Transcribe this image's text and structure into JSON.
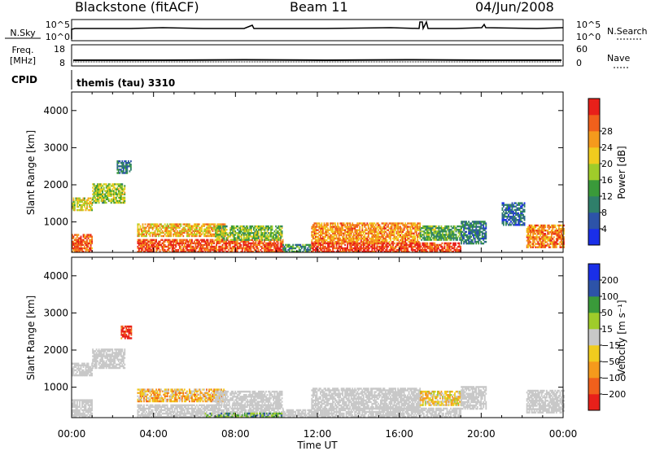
{
  "header": {
    "radar": "Blackstone (fitACF)",
    "beam": "Beam 11",
    "date": "04/Jun/2008"
  },
  "top_panels": {
    "nsky_label": "N.Sky",
    "nsky_ticks": [
      "10^5",
      "10^0"
    ],
    "nsearch_label": "N.Search",
    "nsearch_ticks": [
      "10^5",
      "10^0"
    ],
    "freq_label": "Freq.",
    "freq_unit": "[MHz]",
    "freq_ticks": [
      "18",
      "8"
    ],
    "nave_label": "Nave",
    "nave_ticks": [
      "60",
      "0"
    ],
    "cpid_label": "CPID",
    "cpid_value": "themis (tau) 3310"
  },
  "colors": {
    "power": [
      "#1a2fe8",
      "#2d53a8",
      "#2f7f6a",
      "#3a9a3a",
      "#9fcc2a",
      "#f0cc1e",
      "#f59a1c",
      "#f0601c",
      "#e8201a"
    ],
    "velocity": [
      "#e8201a",
      "#f0601c",
      "#f59a1c",
      "#f0cc1e",
      "#c8c8c8",
      "#9fcc2a",
      "#3a9a3a",
      "#2d53a8",
      "#1a2fe8"
    ],
    "ground_scatter": "#c8c8c8"
  },
  "chart_data": [
    {
      "type": "heatmap",
      "name": "power",
      "xlabel": "Time UT",
      "ylabel": "Slant Range [km]",
      "xlim": [
        0,
        24
      ],
      "ylim": [
        180,
        4500
      ],
      "x_ticks": [
        "00:00",
        "04:00",
        "08:00",
        "12:00",
        "16:00",
        "20:00",
        "00:00"
      ],
      "y_ticks": [
        "1000",
        "2000",
        "3000",
        "4000"
      ],
      "colorbar_label": "Power [dB]",
      "colorbar_ticks": [
        "4",
        "8",
        "12",
        "16",
        "20",
        "24",
        "28"
      ],
      "colorbar_range": [
        0,
        30
      ],
      "regions": [
        {
          "t": [
            0.0,
            1.0
          ],
          "r": [
            180,
            650
          ],
          "v": 25
        },
        {
          "t": [
            0.0,
            1.0
          ],
          "r": [
            1300,
            1650
          ],
          "v": 18
        },
        {
          "t": [
            1.0,
            2.6
          ],
          "r": [
            1500,
            2000
          ],
          "v": 15
        },
        {
          "t": [
            2.2,
            2.9
          ],
          "r": [
            2300,
            2650
          ],
          "v": 8
        },
        {
          "t": [
            3.2,
            7.5
          ],
          "r": [
            600,
            950
          ],
          "v": 20
        },
        {
          "t": [
            3.2,
            10.3
          ],
          "r": [
            180,
            500
          ],
          "v": 26
        },
        {
          "t": [
            7.0,
            10.3
          ],
          "r": [
            500,
            900
          ],
          "v": 14
        },
        {
          "t": [
            10.3,
            11.7
          ],
          "r": [
            180,
            400
          ],
          "v": 10
        },
        {
          "t": [
            11.7,
            17.0
          ],
          "r": [
            400,
            950
          ],
          "v": 22
        },
        {
          "t": [
            11.7,
            19.0
          ],
          "r": [
            180,
            450
          ],
          "v": 27
        },
        {
          "t": [
            17.0,
            19.0
          ],
          "r": [
            500,
            900
          ],
          "v": 12
        },
        {
          "t": [
            19.0,
            20.2
          ],
          "r": [
            400,
            1000
          ],
          "v": 8
        },
        {
          "t": [
            21.0,
            22.1
          ],
          "r": [
            900,
            1500
          ],
          "v": 6
        },
        {
          "t": [
            22.2,
            24.0
          ],
          "r": [
            300,
            900
          ],
          "v": 23
        }
      ]
    },
    {
      "type": "heatmap",
      "name": "velocity",
      "xlabel": "Time UT",
      "ylabel": "Slant Range [km]",
      "xlim": [
        0,
        24
      ],
      "ylim": [
        180,
        4500
      ],
      "x_ticks": [
        "00:00",
        "04:00",
        "08:00",
        "12:00",
        "16:00",
        "20:00",
        "00:00"
      ],
      "y_ticks": [
        "1000",
        "2000",
        "3000",
        "4000"
      ],
      "colorbar_label": "Velocity [m s⁻¹]",
      "colorbar_ticks": [
        "200",
        "100",
        "50",
        "15",
        "−15",
        "−50",
        "−100",
        "−200"
      ],
      "colorbar_range": [
        -250,
        250
      ],
      "regions": [
        {
          "t": [
            0.0,
            1.0
          ],
          "r": [
            180,
            650
          ],
          "v": 0,
          "gs": true
        },
        {
          "t": [
            0.0,
            1.0
          ],
          "r": [
            1300,
            1650
          ],
          "v": 0,
          "gs": true
        },
        {
          "t": [
            1.0,
            2.6
          ],
          "r": [
            1500,
            2000
          ],
          "v": 0,
          "gs": true
        },
        {
          "t": [
            2.4,
            2.9
          ],
          "r": [
            2300,
            2650
          ],
          "v": -220
        },
        {
          "t": [
            3.2,
            7.5
          ],
          "r": [
            600,
            950
          ],
          "v": -70
        },
        {
          "t": [
            3.2,
            10.3
          ],
          "r": [
            180,
            500
          ],
          "v": 0,
          "gs": true
        },
        {
          "t": [
            6.5,
            10.3
          ],
          "r": [
            180,
            300
          ],
          "v": 70
        },
        {
          "t": [
            7.0,
            10.3
          ],
          "r": [
            500,
            900
          ],
          "v": 0,
          "gs": true
        },
        {
          "t": [
            10.3,
            11.7
          ],
          "r": [
            180,
            400
          ],
          "v": 0,
          "gs": true
        },
        {
          "t": [
            11.7,
            17.0
          ],
          "r": [
            400,
            950
          ],
          "v": 0,
          "gs": true
        },
        {
          "t": [
            11.7,
            19.0
          ],
          "r": [
            180,
            450
          ],
          "v": 0,
          "gs": true
        },
        {
          "t": [
            17.0,
            19.0
          ],
          "r": [
            500,
            900
          ],
          "v": -40
        },
        {
          "t": [
            19.0,
            20.2
          ],
          "r": [
            400,
            1000
          ],
          "v": 0,
          "gs": true
        },
        {
          "t": [
            22.2,
            24.0
          ],
          "r": [
            300,
            900
          ],
          "v": 0,
          "gs": true
        }
      ]
    }
  ]
}
